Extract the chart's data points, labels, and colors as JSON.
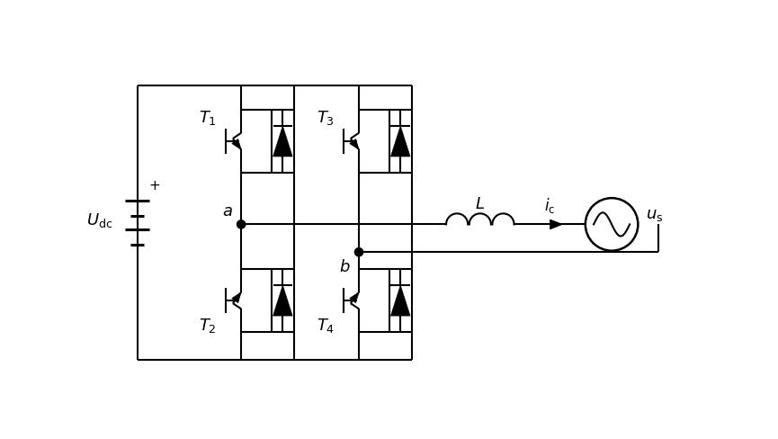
{
  "fig_width": 8.65,
  "fig_height": 4.89,
  "dpi": 100,
  "bg_color": "#ffffff",
  "line_color": "#000000",
  "lw": 1.5,
  "Udc_label": "$U_{\\mathrm{dc}}$",
  "L_label": "$L$",
  "ic_label": "$i_{\\mathrm{c}}$",
  "us_label": "$u_{\\mathrm{s}}$",
  "a_label": "$a$",
  "b_label": "$b$",
  "T1_label": "$T_1$",
  "T2_label": "$T_2$",
  "T3_label": "$T_3$",
  "T4_label": "$T_4$"
}
